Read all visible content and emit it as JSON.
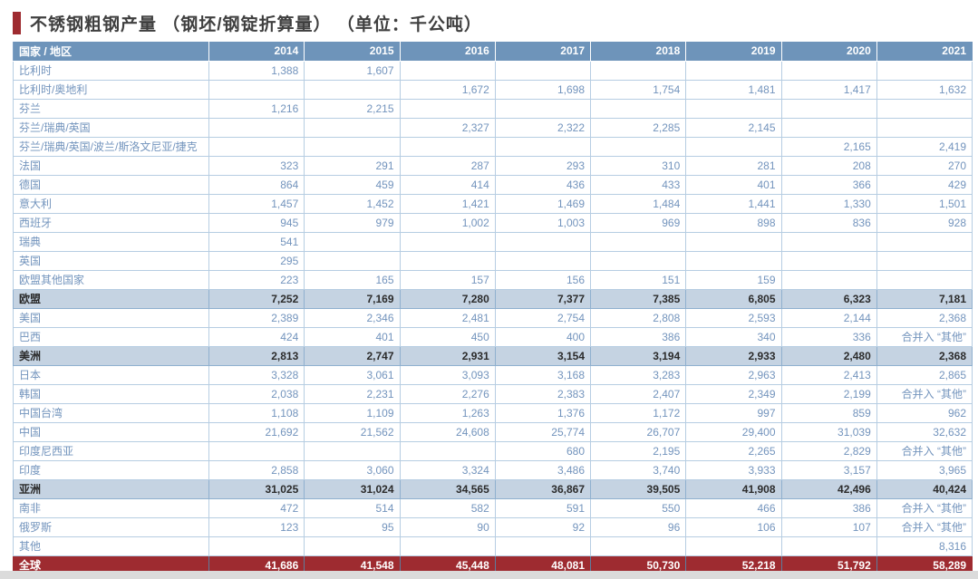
{
  "title": "不锈钢粗钢产量 （钢坯/钢锭折算量） （单位：千公吨）",
  "table": {
    "header": {
      "label_col": "国家 / 地区",
      "years": [
        "2014",
        "2015",
        "2016",
        "2017",
        "2018",
        "2019",
        "2020",
        "2021"
      ]
    },
    "merged_note": "合并入 “其他”",
    "rows": [
      {
        "label": "比利时",
        "type": "data",
        "values": [
          "1,388",
          "1,607",
          "",
          "",
          "",
          "",
          "",
          ""
        ]
      },
      {
        "label": "比利时/奥地利",
        "type": "data",
        "values": [
          "",
          "",
          "1,672",
          "1,698",
          "1,754",
          "1,481",
          "1,417",
          "1,632"
        ]
      },
      {
        "label": "芬兰",
        "type": "data",
        "values": [
          "1,216",
          "2,215",
          "",
          "",
          "",
          "",
          "",
          ""
        ]
      },
      {
        "label": "芬兰/瑞典/英国",
        "type": "data",
        "values": [
          "",
          "",
          "2,327",
          "2,322",
          "2,285",
          "2,145",
          "",
          ""
        ]
      },
      {
        "label": "芬兰/瑞典/英国/波兰/斯洛文尼亚/捷克",
        "type": "data",
        "values": [
          "",
          "",
          "",
          "",
          "",
          "",
          "2,165",
          "2,419"
        ]
      },
      {
        "label": "法国",
        "type": "data",
        "values": [
          "323",
          "291",
          "287",
          "293",
          "310",
          "281",
          "208",
          "270"
        ]
      },
      {
        "label": "德国",
        "type": "data",
        "values": [
          "864",
          "459",
          "414",
          "436",
          "433",
          "401",
          "366",
          "429"
        ]
      },
      {
        "label": "意大利",
        "type": "data",
        "values": [
          "1,457",
          "1,452",
          "1,421",
          "1,469",
          "1,484",
          "1,441",
          "1,330",
          "1,501"
        ]
      },
      {
        "label": "西班牙",
        "type": "data",
        "values": [
          "945",
          "979",
          "1,002",
          "1,003",
          "969",
          "898",
          "836",
          "928"
        ]
      },
      {
        "label": "瑞典",
        "type": "data",
        "values": [
          "541",
          "",
          "",
          "",
          "",
          "",
          "",
          ""
        ]
      },
      {
        "label": "英国",
        "type": "data",
        "values": [
          "295",
          "",
          "",
          "",
          "",
          "",
          "",
          ""
        ]
      },
      {
        "label": "欧盟其他国家",
        "type": "data",
        "values": [
          "223",
          "165",
          "157",
          "156",
          "151",
          "159",
          "",
          ""
        ]
      },
      {
        "label": "欧盟",
        "type": "subtotal",
        "values": [
          "7,252",
          "7,169",
          "7,280",
          "7,377",
          "7,385",
          "6,805",
          "6,323",
          "7,181"
        ]
      },
      {
        "label": "美国",
        "type": "data",
        "values": [
          "2,389",
          "2,346",
          "2,481",
          "2,754",
          "2,808",
          "2,593",
          "2,144",
          "2,368"
        ]
      },
      {
        "label": "巴西",
        "type": "data",
        "values": [
          "424",
          "401",
          "450",
          "400",
          "386",
          "340",
          "336",
          "合并入 “其他”"
        ]
      },
      {
        "label": "美洲",
        "type": "subtotal",
        "values": [
          "2,813",
          "2,747",
          "2,931",
          "3,154",
          "3,194",
          "2,933",
          "2,480",
          "2,368"
        ]
      },
      {
        "label": "日本",
        "type": "data",
        "values": [
          "3,328",
          "3,061",
          "3,093",
          "3,168",
          "3,283",
          "2,963",
          "2,413",
          "2,865"
        ]
      },
      {
        "label": "韩国",
        "type": "data",
        "values": [
          "2,038",
          "2,231",
          "2,276",
          "2,383",
          "2,407",
          "2,349",
          "2,199",
          "合并入 “其他”"
        ]
      },
      {
        "label": "中国台湾",
        "type": "data",
        "values": [
          "1,108",
          "1,109",
          "1,263",
          "1,376",
          "1,172",
          "997",
          "859",
          "962"
        ]
      },
      {
        "label": "中国",
        "type": "data",
        "values": [
          "21,692",
          "21,562",
          "24,608",
          "25,774",
          "26,707",
          "29,400",
          "31,039",
          "32,632"
        ]
      },
      {
        "label": "印度尼西亚",
        "type": "data",
        "values": [
          "",
          "",
          "",
          "680",
          "2,195",
          "2,265",
          "2,829",
          "合并入 “其他”"
        ]
      },
      {
        "label": "印度",
        "type": "data",
        "values": [
          "2,858",
          "3,060",
          "3,324",
          "3,486",
          "3,740",
          "3,933",
          "3,157",
          "3,965"
        ]
      },
      {
        "label": "亚洲",
        "type": "subtotal",
        "values": [
          "31,025",
          "31,024",
          "34,565",
          "36,867",
          "39,505",
          "41,908",
          "42,496",
          "40,424"
        ]
      },
      {
        "label": "南非",
        "type": "data",
        "values": [
          "472",
          "514",
          "582",
          "591",
          "550",
          "466",
          "386",
          "合并入 “其他”"
        ]
      },
      {
        "label": "俄罗斯",
        "type": "data",
        "values": [
          "123",
          "95",
          "90",
          "92",
          "96",
          "106",
          "107",
          "合并入 “其他”"
        ]
      },
      {
        "label": "其他",
        "type": "data",
        "values": [
          "",
          "",
          "",
          "",
          "",
          "",
          "",
          "8,316"
        ]
      },
      {
        "label": "全球",
        "type": "total",
        "values": [
          "41,686",
          "41,548",
          "45,448",
          "48,081",
          "50,730",
          "52,218",
          "51,792",
          "58,289"
        ]
      }
    ]
  },
  "colors": {
    "accent_red": "#9e2b30",
    "header_blue": "#6e94ba",
    "row_text_blue": "#7394bd",
    "subtotal_bg": "#c5d3e2",
    "total_bg": "#9e2b30",
    "border_light": "#b6cde2",
    "title_text": "#3f3f3f",
    "bottom_strip": "#dbdbdb"
  }
}
